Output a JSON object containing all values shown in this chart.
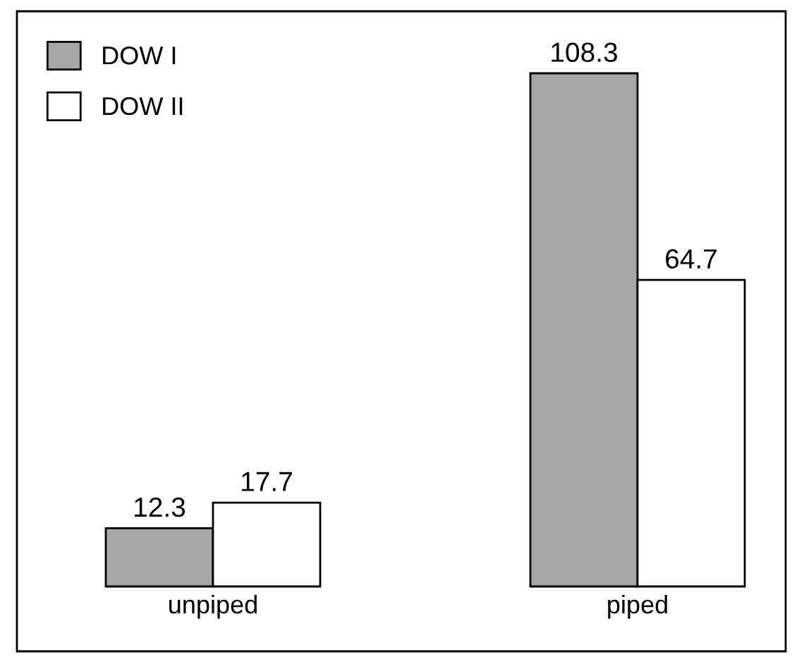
{
  "chart_data": {
    "type": "bar",
    "categories": [
      "unpiped",
      "piped"
    ],
    "series": [
      {
        "name": "DOW I",
        "color": "#a6a6a6",
        "values": [
          12.3,
          108.3
        ]
      },
      {
        "name": "DOW II",
        "color": "#ffffff",
        "values": [
          17.7,
          64.7
        ]
      }
    ],
    "data_labels": true,
    "legend": "top left"
  }
}
